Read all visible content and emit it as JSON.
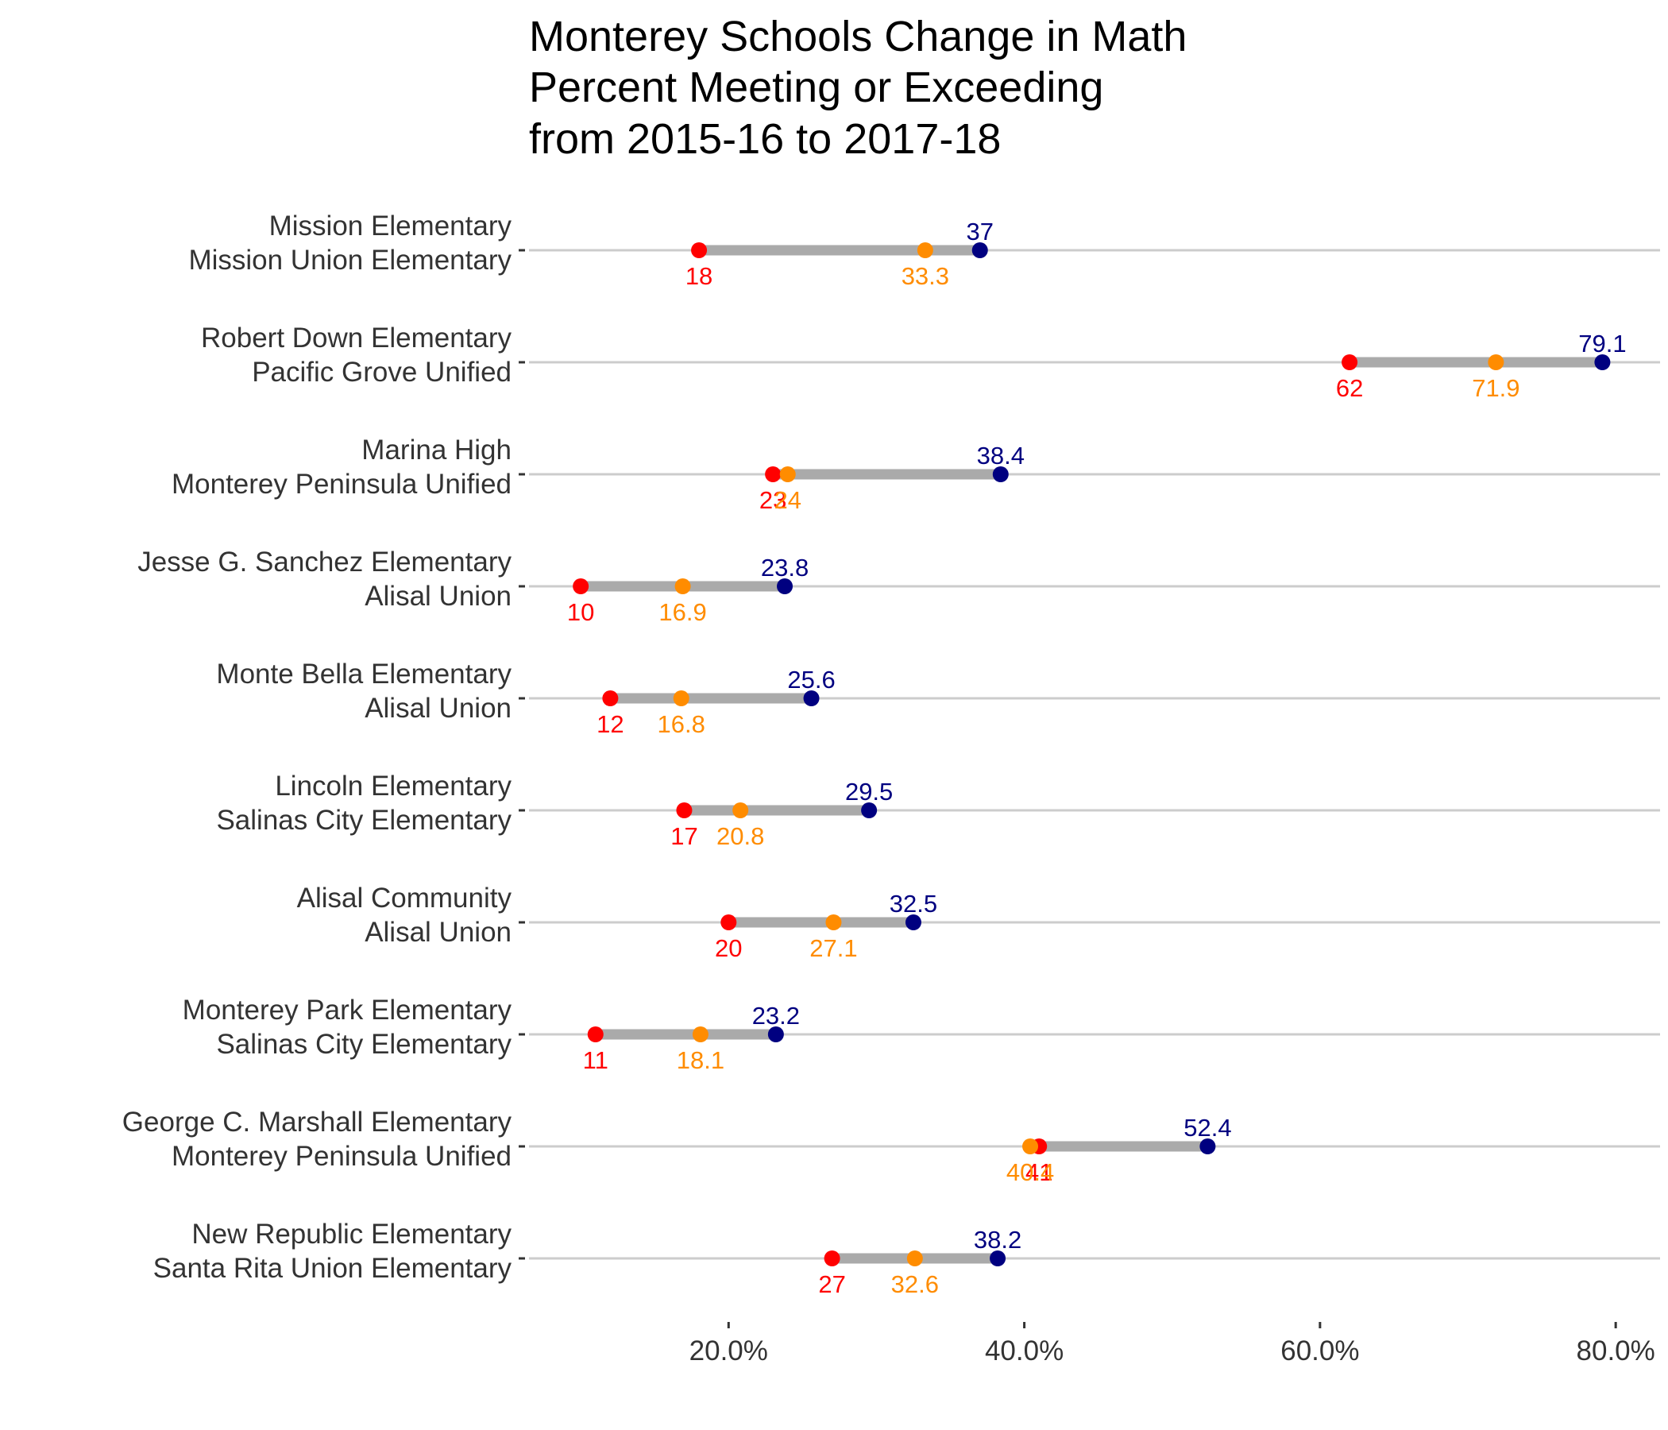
{
  "chart_data": {
    "type": "dumbbell",
    "title": [
      "Monterey Schools Change in Math",
      "Percent Meeting or Exceeding",
      "from 2015-16 to 2017-18"
    ],
    "xlabel": "",
    "ylabel": "",
    "xlim": [
      6.5,
      83
    ],
    "x_ticks": [
      20,
      40,
      60,
      80
    ],
    "x_tick_labels": [
      "20.0%",
      "40.0%",
      "60.0%",
      "80.0%"
    ],
    "grid": true,
    "colors": {
      "start": "#ff0000",
      "middle": "#ff8c00",
      "end": "#000080",
      "segment": "#aaaaaa",
      "grid": "#cccccc"
    },
    "rows": [
      {
        "school": "Mission Elementary",
        "district": "Mission Union Elementary",
        "start": 18,
        "middle": 33.3,
        "end": 37,
        "start_label": "18",
        "middle_label": "33.3",
        "end_label": "37"
      },
      {
        "school": "Robert Down Elementary",
        "district": "Pacific Grove Unified",
        "start": 62,
        "middle": 71.9,
        "end": 79.1,
        "start_label": "62",
        "middle_label": "71.9",
        "end_label": "79.1"
      },
      {
        "school": "Marina High",
        "district": "Monterey Peninsula Unified",
        "start": 23,
        "middle": 24,
        "end": 38.4,
        "start_label": "23",
        "middle_label": "24",
        "end_label": "38.4"
      },
      {
        "school": "Jesse G. Sanchez Elementary",
        "district": "Alisal Union",
        "start": 10,
        "middle": 16.9,
        "end": 23.8,
        "start_label": "10",
        "middle_label": "16.9",
        "end_label": "23.8"
      },
      {
        "school": "Monte Bella Elementary",
        "district": "Alisal Union",
        "start": 12,
        "middle": 16.8,
        "end": 25.6,
        "start_label": "12",
        "middle_label": "16.8",
        "end_label": "25.6"
      },
      {
        "school": "Lincoln Elementary",
        "district": "Salinas City Elementary",
        "start": 17,
        "middle": 20.8,
        "end": 29.5,
        "start_label": "17",
        "middle_label": "20.8",
        "end_label": "29.5"
      },
      {
        "school": "Alisal Community",
        "district": "Alisal Union",
        "start": 20,
        "middle": 27.1,
        "end": 32.5,
        "start_label": "20",
        "middle_label": "27.1",
        "end_label": "32.5"
      },
      {
        "school": "Monterey Park Elementary",
        "district": "Salinas City Elementary",
        "start": 11,
        "middle": 18.1,
        "end": 23.2,
        "start_label": "11",
        "middle_label": "18.1",
        "end_label": "23.2"
      },
      {
        "school": "George C. Marshall Elementary",
        "district": "Monterey Peninsula Unified",
        "start": 41,
        "middle": 40.4,
        "end": 52.4,
        "start_label": "41",
        "middle_label": "40.4",
        "end_label": "52.4"
      },
      {
        "school": "New Republic Elementary",
        "district": "Santa Rita Union Elementary",
        "start": 27,
        "middle": 32.6,
        "end": 38.2,
        "start_label": "27",
        "middle_label": "32.6",
        "end_label": "38.2"
      }
    ]
  }
}
